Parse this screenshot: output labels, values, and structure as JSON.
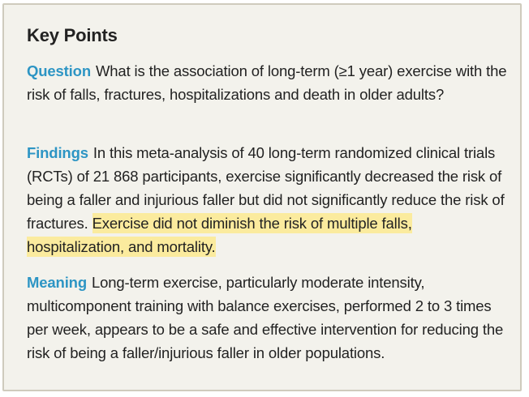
{
  "title": "Key Points",
  "question": {
    "label": "Question",
    "text": "What is the association of long-term (≥1 year) exercise with the risk of falls, fractures, hospitalizations and death in older adults?"
  },
  "findings": {
    "label": "Findings",
    "text": "In this meta-analysis of 40 long-term randomized clinical trials (RCTs) of 21 868 participants, exercise significantly decreased the risk of being a faller and injurious faller but did not significantly reduce the risk of fractures.",
    "highlight": "Exercise did not diminish the risk of multiple falls, hospitalization, and mortality."
  },
  "meaning": {
    "label": "Meaning",
    "text": "Long-term exercise, particularly moderate intensity, multicomponent training with balance exercises, performed 2 to 3 times per week, appears to be a safe and effective intervention for reducing the risk of being a faller/injurious faller in older populations."
  },
  "colors": {
    "accent": "#2d95c4",
    "highlight": "#fbeb9e",
    "background": "#f3f2ec",
    "border": "#cfcbbd"
  }
}
